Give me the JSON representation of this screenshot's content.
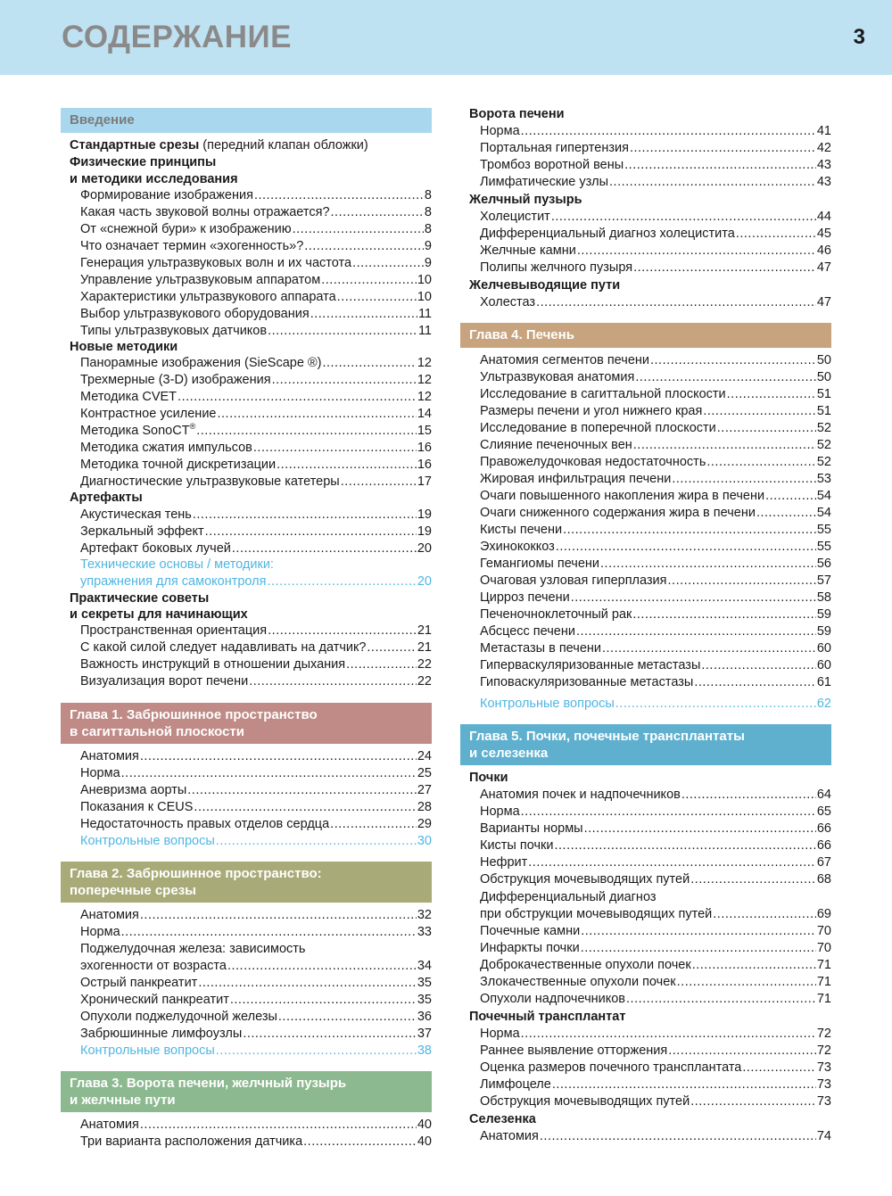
{
  "header": {
    "title": "СОДЕРЖАНИЕ",
    "page_number": "3"
  },
  "colors": {
    "header_band": "#bfe2f3",
    "intro": "#a9d8ee",
    "ch1": "#c08b87",
    "ch2": "#a8ab78",
    "ch3": "#8cb98f",
    "ch4": "#c8a47e",
    "ch5": "#5fb0cf",
    "link": "#4fb6e2"
  },
  "left": {
    "intro": {
      "heading": "Введение",
      "std_bold": "Стандартные срезы",
      "std_rest": " (передний клапан обложки)",
      "phys1": "Физические принципы",
      "phys2": "и методики исследования",
      "phys_items": [
        {
          "t": "Формирование изображения",
          "p": "8"
        },
        {
          "t": "Какая часть звуковой волны отражается?",
          "p": "8"
        },
        {
          "t": "От «снежной бури» к изображению",
          "p": "8"
        },
        {
          "t": "Что означает термин «эхогенность»?",
          "p": "9"
        },
        {
          "t": "Генерация ультразвуковых волн и их частота",
          "p": "9"
        },
        {
          "t": "Управление ультразвуковым аппаратом",
          "p": "10"
        },
        {
          "t": "Характеристики ультразвукового аппарата",
          "p": "10"
        },
        {
          "t": "Выбор ультразвукового оборудования",
          "p": "11"
        },
        {
          "t": "Типы ультразвуковых датчиков",
          "p": "11"
        }
      ],
      "new_methods": "Новые методики",
      "nm_items": [
        {
          "t": "Панорамные изображения (SieScape ®)",
          "p": "12"
        },
        {
          "t": "Трехмерные (3-D) изображения",
          "p": "12"
        },
        {
          "t": "Методика CVET",
          "p": "12"
        },
        {
          "t": "Контрастное усиление",
          "p": "14"
        },
        {
          "t": "Методика SonoCT",
          "sup": "®",
          "p": "15"
        },
        {
          "t": "Методика сжатия импульсов",
          "p": "16"
        },
        {
          "t": "Методика точной дискретизации",
          "p": "16"
        },
        {
          "t": "Диагностические ультразвуковые катетеры",
          "p": "17"
        }
      ],
      "artifacts": "Артефакты",
      "art_items": [
        {
          "t": "Акустическая тень",
          "p": "19"
        },
        {
          "t": "Зеркальный эффект",
          "p": "19"
        },
        {
          "t": "Артефакт боковых лучей",
          "p": "20"
        }
      ],
      "tech1": "Технические основы / методики:",
      "tech2": "упражнения для самоконтроля",
      "tech_p": "20",
      "tips1": "Практические советы",
      "tips2": "и секреты для начинающих",
      "tips_items": [
        {
          "t": "Пространственная ориентация",
          "p": "21"
        },
        {
          "t": "С какой силой следует надавливать на датчик?",
          "p": "21"
        },
        {
          "t": "Важность инструкций в отношении дыхания",
          "p": "22"
        },
        {
          "t": "Визуализация ворот печени",
          "p": "22"
        }
      ]
    },
    "ch1": {
      "heading1": "Глава 1. Забрюшинное пространство",
      "heading2": "в сагиттальной плоскости",
      "items": [
        {
          "t": "Анатомия",
          "p": "24"
        },
        {
          "t": "Норма",
          "p": "25"
        },
        {
          "t": "Аневризма аорты",
          "p": "27"
        },
        {
          "t": "Показания к CEUS",
          "p": "28"
        },
        {
          "t": "Недостаточность правых отделов сердца",
          "p": "29"
        }
      ],
      "review": {
        "t": "Контрольные вопросы",
        "p": "30"
      }
    },
    "ch2": {
      "heading1": "Глава 2. Забрюшинное пространство:",
      "heading2": "поперечные срезы",
      "items": [
        {
          "t": "Анатомия",
          "p": "32"
        },
        {
          "t": "Норма",
          "p": "33"
        }
      ],
      "pancreas1": "Поджелудочная железа: зависимость",
      "items2": [
        {
          "t": "эхогенности от возраста",
          "p": "34"
        },
        {
          "t": "Острый панкреатит",
          "p": "35"
        },
        {
          "t": "Хронический панкреатит",
          "p": "35"
        },
        {
          "t": "Опухоли поджелудочной железы",
          "p": "36"
        },
        {
          "t": "Забрюшинные лимфоузлы",
          "p": "37"
        }
      ],
      "review": {
        "t": "Контрольные вопросы",
        "p": "38"
      }
    },
    "ch3": {
      "heading1": "Глава 3. Ворота печени, желчный пузырь",
      "heading2": "и желчные пути",
      "items": [
        {
          "t": "Анатомия",
          "p": "40"
        },
        {
          "t": "Три варианта расположения датчика",
          "p": "40"
        }
      ]
    }
  },
  "right": {
    "hilum": "Ворота печени",
    "hilum_items": [
      {
        "t": "Норма",
        "p": "41"
      },
      {
        "t": "Портальная гипертензия",
        "p": "42"
      },
      {
        "t": "Тромбоз воротной вены",
        "p": "43"
      },
      {
        "t": "Лимфатические узлы",
        "p": "43"
      }
    ],
    "gb": "Желчный пузырь",
    "gb_items": [
      {
        "t": "Холецистит",
        "p": "44"
      },
      {
        "t": "Дифференциальный диагноз холецистита",
        "p": "45"
      },
      {
        "t": "Желчные камни",
        "p": "46"
      },
      {
        "t": "Полипы желчного пузыря",
        "p": "47"
      }
    ],
    "bile": "Желчевыводящие пути",
    "bile_items": [
      {
        "t": "Холестаз",
        "p": "47"
      }
    ],
    "ch4": {
      "heading": "Глава 4. Печень",
      "items": [
        {
          "t": "Анатомия сегментов печени",
          "p": "50"
        },
        {
          "t": "Ультразвуковая анатомия",
          "p": "50"
        },
        {
          "t": "Исследование в сагиттальной плоскости",
          "p": "51"
        },
        {
          "t": "Размеры печени и угол нижнего края",
          "p": "51"
        },
        {
          "t": "Исследование в поперечной плоскости",
          "p": "52"
        },
        {
          "t": "Слияние печеночных вен",
          "p": "52"
        },
        {
          "t": "Правожелудочковая недостаточность",
          "p": "52"
        },
        {
          "t": "Жировая инфильтрация печени",
          "p": "53"
        },
        {
          "t": "Очаги повышенного накопления жира в печени",
          "p": "54"
        },
        {
          "t": "Очаги сниженного содержания жира в печени",
          "p": "54"
        },
        {
          "t": "Кисты печени",
          "p": "55"
        },
        {
          "t": "Эхинококкоз",
          "p": "55"
        },
        {
          "t": "Гемангиомы печени",
          "p": "56"
        },
        {
          "t": "Очаговая узловая гиперплазия",
          "p": "57"
        },
        {
          "t": "Цирроз печени",
          "p": "58"
        },
        {
          "t": "Печеночноклеточный рак",
          "p": "59"
        },
        {
          "t": "Абсцесс печени",
          "p": "59"
        },
        {
          "t": "Метастазы в печени",
          "p": "60"
        },
        {
          "t": "Гиперваскуляризованные метастазы",
          "p": "60"
        },
        {
          "t": "Гиповаскуляризованные метастазы",
          "p": "61"
        }
      ],
      "review": {
        "t": "Контрольные вопросы",
        "p": "62"
      }
    },
    "ch5": {
      "heading1": "Глава 5. Почки, почечные трансплантаты",
      "heading2": "и селезенка",
      "kidneys": "Почки",
      "k_items": [
        {
          "t": "Анатомия почек и надпочечников",
          "p": "64"
        },
        {
          "t": "Норма",
          "p": "65"
        },
        {
          "t": "Варианты нормы",
          "p": "66"
        },
        {
          "t": "Кисты почки",
          "p": "66"
        },
        {
          "t": "Нефрит",
          "p": "67"
        },
        {
          "t": "Обструкция мочевыводящих путей",
          "p": "68"
        }
      ],
      "diff1": "Дифференциальный диагноз",
      "k_items2": [
        {
          "t": "при обструкции мочевыводящих путей",
          "p": "69"
        },
        {
          "t": "Почечные камни",
          "p": "70"
        },
        {
          "t": "Инфаркты почки",
          "p": "70"
        },
        {
          "t": "Доброкачественные опухоли почек",
          "p": "71"
        },
        {
          "t": "Злокачественные опухоли почек",
          "p": "71"
        },
        {
          "t": "Опухоли надпочечников",
          "p": "71"
        }
      ],
      "transplant": "Почечный трансплантат",
      "t_items": [
        {
          "t": "Норма",
          "p": "72"
        },
        {
          "t": "Раннее выявление отторжения",
          "p": "72"
        },
        {
          "t": "Оценка размеров почечного трансплантата",
          "p": "73"
        },
        {
          "t": "Лимфоцеле",
          "p": "73"
        },
        {
          "t": "Обструкция мочевыводящих путей",
          "p": "73"
        }
      ],
      "spleen": "Селезенка",
      "s_items": [
        {
          "t": "Анатомия",
          "p": "74"
        }
      ]
    }
  }
}
